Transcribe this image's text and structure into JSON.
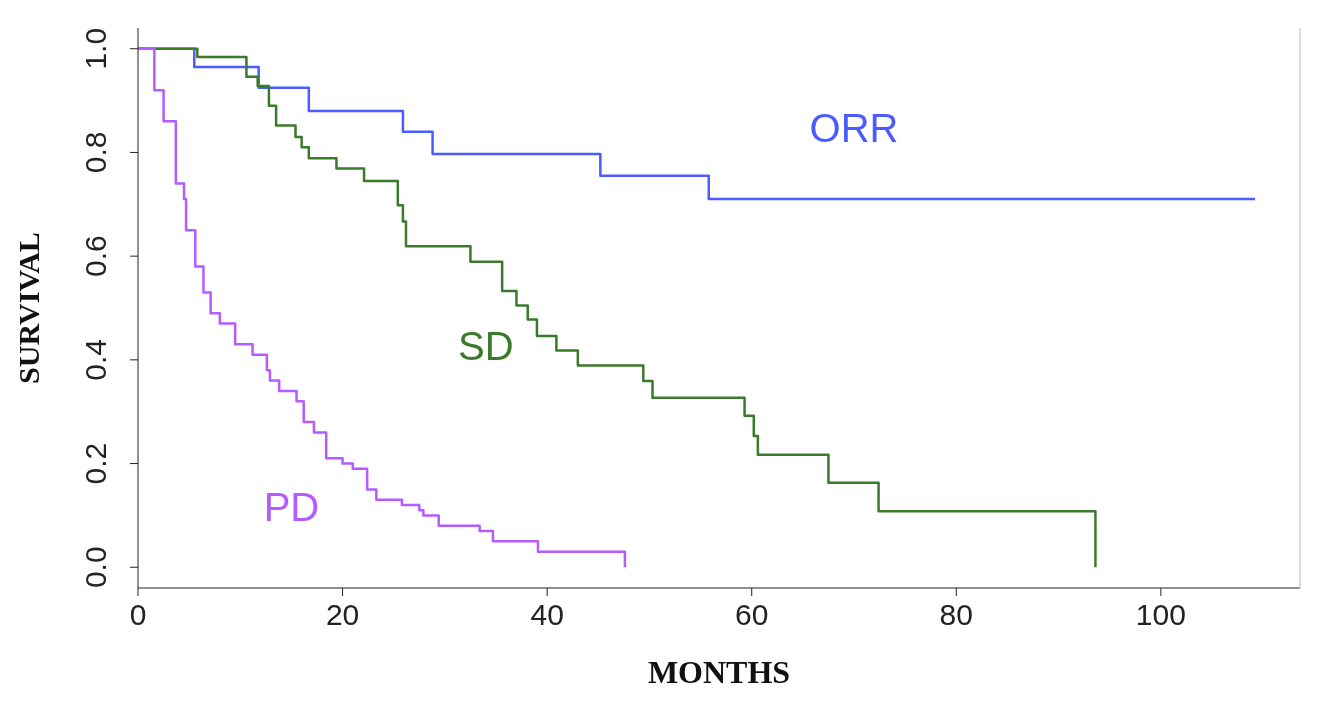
{
  "chart_data": {
    "type": "step",
    "xlabel": "MONTHS",
    "ylabel": "SURVIVAL",
    "xlim": [
      0,
      113.6
    ],
    "xticks": [
      0,
      20,
      40,
      60,
      80,
      100
    ],
    "ylim": [
      -0.04,
      1.04
    ],
    "yticks": [
      {
        "value": 0,
        "label": "0.0"
      },
      {
        "value": 0.2,
        "label": "0.2"
      },
      {
        "value": 0.4,
        "label": "0.4"
      },
      {
        "value": 0.6,
        "label": "0.6"
      },
      {
        "value": 0.8,
        "label": "0.8"
      },
      {
        "value": 1,
        "label": "1.0"
      }
    ],
    "grid": false,
    "legend": false,
    "marker": "none",
    "line_style": "solid",
    "series": [
      {
        "name": "ORR",
        "color": "#4a5cff",
        "x": [
          0,
          5.5,
          11.8,
          16.7,
          25.9,
          28.8,
          45.2,
          55.8,
          109.2
        ],
        "values": [
          1,
          0.965,
          0.925,
          0.88,
          0.84,
          0.797,
          0.755,
          0.71,
          0.71
        ]
      },
      {
        "name": "SD",
        "color": "#3a7a2a",
        "x": [
          0,
          5.8,
          10.6,
          11.7,
          12.8,
          13.5,
          15.4,
          16,
          16.7,
          19.4,
          22.1,
          25.4,
          25.9,
          26.2,
          32.5,
          35.6,
          37,
          38.1,
          39,
          40.9,
          43,
          49.4,
          50.3,
          59.3,
          60.2,
          60.6,
          67.5,
          72.4,
          93.6
        ],
        "values": [
          1,
          0.984,
          0.946,
          0.928,
          0.89,
          0.852,
          0.83,
          0.81,
          0.789,
          0.769,
          0.745,
          0.698,
          0.667,
          0.619,
          0.589,
          0.533,
          0.505,
          0.478,
          0.446,
          0.418,
          0.389,
          0.359,
          0.327,
          0.292,
          0.253,
          0.217,
          0.163,
          0.108,
          0
        ]
      },
      {
        "name": "PD",
        "color": "#b45cff",
        "x": [
          0,
          1.6,
          2.5,
          3.7,
          4.5,
          4.7,
          5.6,
          6.4,
          7.1,
          8,
          9.5,
          10.5,
          11.2,
          12.6,
          12.9,
          13.8,
          15.5,
          16.2,
          17.2,
          18.4,
          20,
          21,
          22.4,
          23.3,
          25.8,
          27.5,
          27.9,
          29.4,
          33.4,
          34.7,
          39.1,
          47.6
        ],
        "values": [
          1,
          0.92,
          0.86,
          0.74,
          0.71,
          0.65,
          0.58,
          0.53,
          0.49,
          0.47,
          0.43,
          0.43,
          0.41,
          0.38,
          0.36,
          0.34,
          0.32,
          0.28,
          0.26,
          0.21,
          0.2,
          0.19,
          0.15,
          0.13,
          0.12,
          0.11,
          0.1,
          0.08,
          0.07,
          0.05,
          0.03,
          0
        ]
      }
    ]
  }
}
